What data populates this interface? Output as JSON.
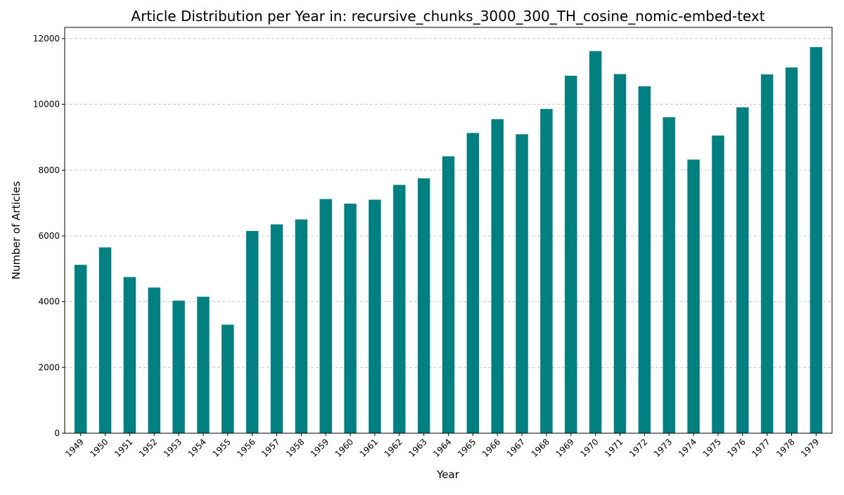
{
  "chart_data": {
    "type": "bar",
    "title": "Article Distribution per Year in: recursive_chunks_3000_300_TH_cosine_nomic-embed-text",
    "xlabel": "Year",
    "ylabel": "Number of Articles",
    "categories": [
      "1949",
      "1950",
      "1951",
      "1952",
      "1953",
      "1954",
      "1955",
      "1956",
      "1957",
      "1958",
      "1959",
      "1960",
      "1961",
      "1962",
      "1963",
      "1964",
      "1965",
      "1966",
      "1967",
      "1968",
      "1969",
      "1970",
      "1971",
      "1972",
      "1973",
      "1974",
      "1975",
      "1976",
      "1977",
      "1978",
      "1979"
    ],
    "values": [
      5120,
      5650,
      4750,
      4430,
      4030,
      4150,
      3300,
      6150,
      6350,
      6500,
      7120,
      6980,
      7100,
      7550,
      7750,
      8420,
      9130,
      9550,
      9090,
      9860,
      10870,
      11620,
      10920,
      10550,
      9610,
      8320,
      9050,
      9910,
      10910,
      11120,
      11740
    ],
    "yticks": [
      0,
      2000,
      4000,
      6000,
      8000,
      10000,
      12000
    ],
    "ylim": [
      0,
      12340
    ],
    "grid": "horizontal dashed",
    "bar_color": "#008080",
    "legend": "none"
  }
}
